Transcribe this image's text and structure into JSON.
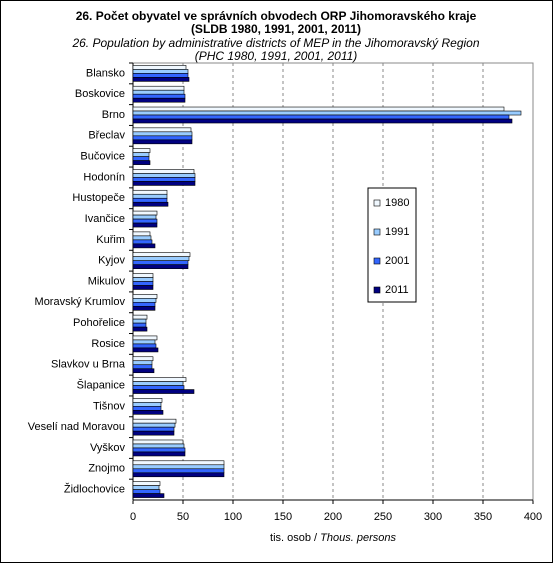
{
  "chart_data": {
    "type": "hbar",
    "title": "26. Počet obyvatel ve správních obvodech ORP Jihomoravského kraje",
    "title_line2": "(SLDB 1980, 1991, 2001, 2011)",
    "subtitle": "26. Population by administrative districts of MEP in the Jihomoravský Region",
    "subtitle_line2": "(PHC 1980, 1991, 2001, 2011)",
    "x_label": "tis. osob /",
    "x_label_en": "Thous. persons",
    "categories": [
      "Blansko",
      "Boskovice",
      "Brno",
      "Břeclav",
      "Bučovice",
      "Hodonín",
      "Hustopeče",
      "Ivančice",
      "Kuřim",
      "Kyjov",
      "Mikulov",
      "Moravský Krumlov",
      "Pohořelice",
      "Rosice",
      "Slavkov u Brna",
      "Šlapanice",
      "Tišnov",
      "Veselí nad Moravou",
      "Vyškov",
      "Znojmo",
      "Židlochovice"
    ],
    "series": [
      {
        "name": "1980",
        "color": "#f0f8ff",
        "values": [
          53,
          51,
          371,
          58,
          17,
          61,
          34,
          24,
          17,
          57,
          20,
          24,
          14,
          24,
          20,
          53,
          29,
          43,
          50,
          91,
          27
        ]
      },
      {
        "name": "1991",
        "color": "#99ccff",
        "values": [
          55,
          51,
          388,
          59,
          16,
          62,
          34,
          23,
          18,
          56,
          20,
          23,
          13,
          22,
          19,
          50,
          28,
          42,
          51,
          91,
          26
        ]
      },
      {
        "name": "2001",
        "color": "#3366ff",
        "values": [
          55,
          52,
          376,
          59,
          16,
          62,
          34,
          24,
          19,
          55,
          20,
          22,
          13,
          23,
          19,
          51,
          28,
          41,
          52,
          91,
          27
        ]
      },
      {
        "name": "2011",
        "color": "#000080",
        "values": [
          56,
          52,
          379,
          59,
          17,
          62,
          35,
          24,
          22,
          55,
          20,
          22,
          14,
          25,
          21,
          61,
          30,
          41,
          52,
          91,
          31
        ]
      }
    ],
    "xlim": [
      0,
      400
    ],
    "xticks": [
      0,
      50,
      100,
      150,
      200,
      250,
      300,
      350,
      400
    ],
    "grid": true
  }
}
